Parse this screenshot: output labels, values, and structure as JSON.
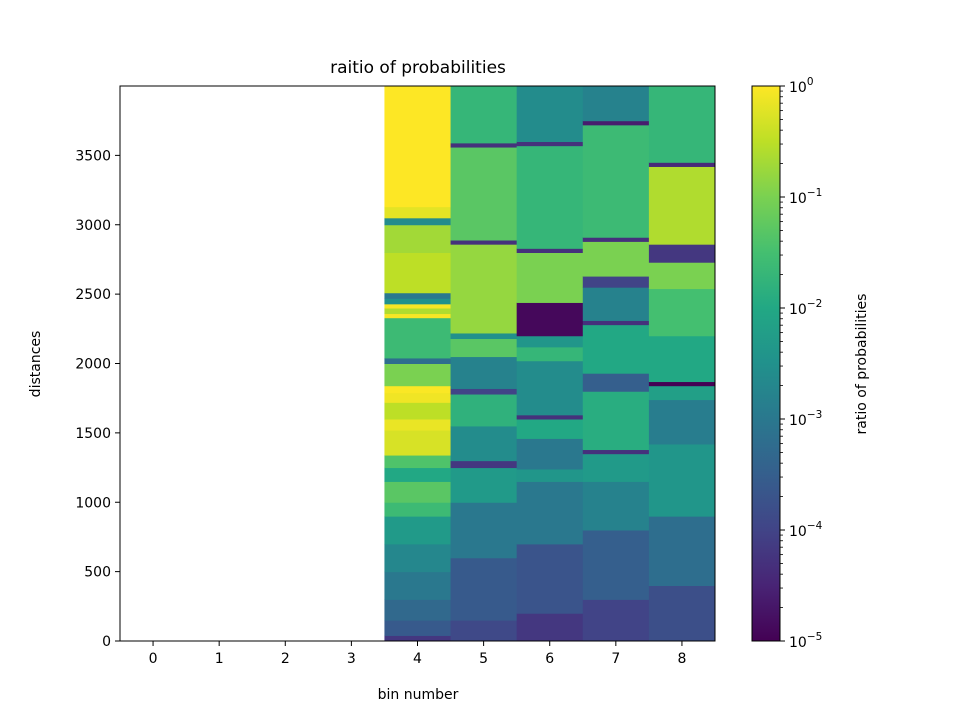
{
  "chart_data": {
    "type": "heatmap",
    "title": "raitio of probabilities",
    "xlabel": "bin number",
    "ylabel": "distances",
    "colorbar_label": "ratio of probabilities",
    "colormap": "viridis",
    "color_scale": "log",
    "color_range": [
      1e-05,
      1
    ],
    "x_ticks": [
      "0",
      "1",
      "2",
      "3",
      "4",
      "5",
      "6",
      "7",
      "8"
    ],
    "y_ticks": [
      "0",
      "500",
      "1000",
      "1500",
      "2000",
      "2500",
      "3000",
      "3500"
    ],
    "y_range": [
      0,
      4000
    ],
    "colorbar_ticks": [
      {
        "base": "10",
        "exp": "0"
      },
      {
        "base": "10",
        "exp": "−1"
      },
      {
        "base": "10",
        "exp": "−2"
      },
      {
        "base": "10",
        "exp": "−3"
      },
      {
        "base": "10",
        "exp": "−4"
      },
      {
        "base": "10",
        "exp": "−5"
      }
    ],
    "columns": [
      {
        "bin": 0,
        "segments": []
      },
      {
        "bin": 1,
        "segments": []
      },
      {
        "bin": 2,
        "segments": []
      },
      {
        "bin": 3,
        "segments": []
      },
      {
        "bin": 4,
        "segments": [
          {
            "from": 0,
            "to": 40,
            "log10": -4.2
          },
          {
            "from": 40,
            "to": 150,
            "log10": -3.6
          },
          {
            "from": 150,
            "to": 300,
            "log10": -3.3
          },
          {
            "from": 300,
            "to": 500,
            "log10": -3.0
          },
          {
            "from": 500,
            "to": 700,
            "log10": -2.7
          },
          {
            "from": 700,
            "to": 900,
            "log10": -2.3
          },
          {
            "from": 900,
            "to": 1000,
            "log10": -1.6
          },
          {
            "from": 1000,
            "to": 1150,
            "log10": -1.3
          },
          {
            "from": 1150,
            "to": 1250,
            "log10": -2.0
          },
          {
            "from": 1250,
            "to": 1340,
            "log10": -1.4
          },
          {
            "from": 1340,
            "to": 1520,
            "log10": -0.3
          },
          {
            "from": 1520,
            "to": 1600,
            "log10": -0.15
          },
          {
            "from": 1600,
            "to": 1720,
            "log10": -0.5
          },
          {
            "from": 1720,
            "to": 1790,
            "log10": -0.1
          },
          {
            "from": 1790,
            "to": 1840,
            "log10": -0.02
          },
          {
            "from": 1840,
            "to": 2000,
            "log10": -1.0
          },
          {
            "from": 2000,
            "to": 2040,
            "log10": -3.2
          },
          {
            "from": 2040,
            "to": 2330,
            "log10": -1.6
          },
          {
            "from": 2330,
            "to": 2360,
            "log10": -0.05
          },
          {
            "from": 2360,
            "to": 2400,
            "log10": -0.6
          },
          {
            "from": 2400,
            "to": 2430,
            "log10": -0.05
          },
          {
            "from": 2430,
            "to": 2470,
            "log10": -2.5
          },
          {
            "from": 2470,
            "to": 2510,
            "log10": -3.0
          },
          {
            "from": 2510,
            "to": 2800,
            "log10": -0.5
          },
          {
            "from": 2800,
            "to": 3000,
            "log10": -0.7
          },
          {
            "from": 3000,
            "to": 3050,
            "log10": -2.6
          },
          {
            "from": 3050,
            "to": 3130,
            "log10": -0.2
          },
          {
            "from": 3130,
            "to": 4000,
            "log10": 0.0
          }
        ]
      },
      {
        "bin": 5,
        "segments": [
          {
            "from": 0,
            "to": 150,
            "log10": -3.9
          },
          {
            "from": 150,
            "to": 600,
            "log10": -3.6
          },
          {
            "from": 600,
            "to": 1000,
            "log10": -3.0
          },
          {
            "from": 1000,
            "to": 1250,
            "log10": -2.3
          },
          {
            "from": 1250,
            "to": 1300,
            "log10": -4.2
          },
          {
            "from": 1300,
            "to": 1550,
            "log10": -2.6
          },
          {
            "from": 1550,
            "to": 1780,
            "log10": -1.8
          },
          {
            "from": 1780,
            "to": 1820,
            "log10": -4.0
          },
          {
            "from": 1820,
            "to": 2050,
            "log10": -2.8
          },
          {
            "from": 2050,
            "to": 2180,
            "log10": -1.3
          },
          {
            "from": 2180,
            "to": 2220,
            "log10": -2.5
          },
          {
            "from": 2220,
            "to": 2860,
            "log10": -0.8
          },
          {
            "from": 2860,
            "to": 2890,
            "log10": -4.3
          },
          {
            "from": 2890,
            "to": 3560,
            "log10": -1.3
          },
          {
            "from": 3560,
            "to": 3590,
            "log10": -4.3
          },
          {
            "from": 3590,
            "to": 4000,
            "log10": -1.7
          }
        ]
      },
      {
        "bin": 6,
        "segments": [
          {
            "from": 0,
            "to": 200,
            "log10": -4.2
          },
          {
            "from": 200,
            "to": 700,
            "log10": -3.7
          },
          {
            "from": 700,
            "to": 1150,
            "log10": -3.0
          },
          {
            "from": 1150,
            "to": 1240,
            "log10": -2.4
          },
          {
            "from": 1240,
            "to": 1460,
            "log10": -3.0
          },
          {
            "from": 1460,
            "to": 1600,
            "log10": -2.0
          },
          {
            "from": 1600,
            "to": 1630,
            "log10": -4.3
          },
          {
            "from": 1630,
            "to": 2020,
            "log10": -2.6
          },
          {
            "from": 2020,
            "to": 2120,
            "log10": -1.7
          },
          {
            "from": 2120,
            "to": 2200,
            "log10": -2.4
          },
          {
            "from": 2200,
            "to": 2440,
            "log10": -4.9
          },
          {
            "from": 2440,
            "to": 2800,
            "log10": -1.0
          },
          {
            "from": 2800,
            "to": 2830,
            "log10": -4.3
          },
          {
            "from": 2830,
            "to": 3570,
            "log10": -1.7
          },
          {
            "from": 3570,
            "to": 3600,
            "log10": -4.3
          },
          {
            "from": 3600,
            "to": 4000,
            "log10": -2.6
          }
        ]
      },
      {
        "bin": 7,
        "segments": [
          {
            "from": 0,
            "to": 300,
            "log10": -4.0
          },
          {
            "from": 300,
            "to": 800,
            "log10": -3.5
          },
          {
            "from": 800,
            "to": 1150,
            "log10": -2.8
          },
          {
            "from": 1150,
            "to": 1350,
            "log10": -2.3
          },
          {
            "from": 1350,
            "to": 1380,
            "log10": -4.3
          },
          {
            "from": 1380,
            "to": 1800,
            "log10": -1.9
          },
          {
            "from": 1800,
            "to": 1930,
            "log10": -3.5
          },
          {
            "from": 1930,
            "to": 2280,
            "log10": -2.0
          },
          {
            "from": 2280,
            "to": 2310,
            "log10": -4.3
          },
          {
            "from": 2310,
            "to": 2550,
            "log10": -2.8
          },
          {
            "from": 2550,
            "to": 2630,
            "log10": -4.0
          },
          {
            "from": 2630,
            "to": 2880,
            "log10": -1.0
          },
          {
            "from": 2880,
            "to": 2910,
            "log10": -4.3
          },
          {
            "from": 2910,
            "to": 3720,
            "log10": -1.6
          },
          {
            "from": 3720,
            "to": 3750,
            "log10": -4.6
          },
          {
            "from": 3750,
            "to": 4000,
            "log10": -2.8
          }
        ]
      },
      {
        "bin": 8,
        "segments": [
          {
            "from": 0,
            "to": 400,
            "log10": -3.8
          },
          {
            "from": 400,
            "to": 900,
            "log10": -3.2
          },
          {
            "from": 900,
            "to": 1420,
            "log10": -2.4
          },
          {
            "from": 1420,
            "to": 1740,
            "log10": -2.9
          },
          {
            "from": 1740,
            "to": 1840,
            "log10": -2.2
          },
          {
            "from": 1840,
            "to": 1870,
            "log10": -5.0
          },
          {
            "from": 1870,
            "to": 2200,
            "log10": -2.0
          },
          {
            "from": 2200,
            "to": 2540,
            "log10": -1.5
          },
          {
            "from": 2540,
            "to": 2730,
            "log10": -1.0
          },
          {
            "from": 2730,
            "to": 2860,
            "log10": -4.2
          },
          {
            "from": 2860,
            "to": 3420,
            "log10": -0.6
          },
          {
            "from": 3420,
            "to": 3450,
            "log10": -4.4
          },
          {
            "from": 3450,
            "to": 4000,
            "log10": -1.7
          }
        ]
      }
    ]
  }
}
